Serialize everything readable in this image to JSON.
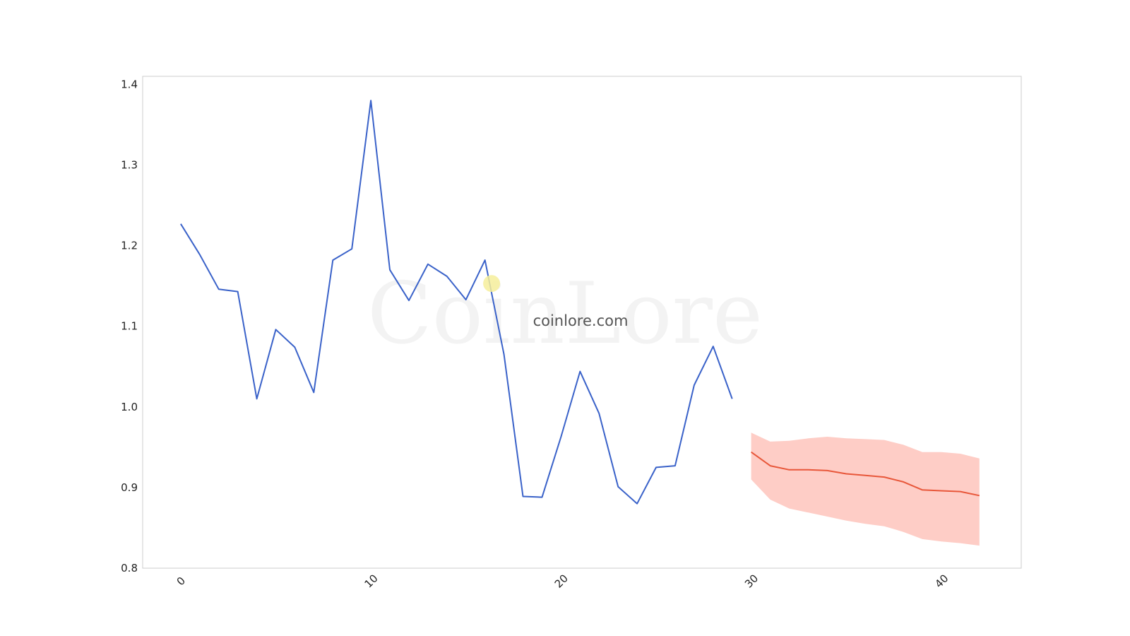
{
  "watermark": {
    "logo_text": "CoinLore",
    "site_text": "coinlore.com"
  },
  "colors": {
    "history_line": "#3a62c9",
    "forecast_line": "#e8573a",
    "forecast_band": "#fdbcb3",
    "frame": "#cccccc",
    "marker": "#f6ef9b"
  },
  "chart_data": {
    "type": "line",
    "title": "",
    "xlabel": "",
    "ylabel": "",
    "xlim": [
      -2,
      44.2
    ],
    "ylim": [
      0.8,
      1.41
    ],
    "x_ticks": [
      0,
      10,
      20,
      30,
      40
    ],
    "x_tick_labels": [
      "0",
      "10",
      "20",
      "30",
      "40"
    ],
    "y_ticks": [
      0.8,
      0.9,
      1.0,
      1.1,
      1.2,
      1.3,
      1.4
    ],
    "y_tick_labels": [
      "0.8",
      "0.9",
      "1.0",
      "1.1",
      "1.2",
      "1.3",
      "1.4"
    ],
    "grid": false,
    "series": [
      {
        "x": [
          0,
          1,
          2,
          3,
          4,
          5,
          6,
          7,
          8,
          9,
          10,
          11,
          12,
          13,
          14,
          15,
          16,
          17,
          18,
          19,
          20,
          21,
          22,
          23,
          24,
          25,
          26,
          27,
          28,
          29
        ],
        "values": [
          1.227,
          1.189,
          1.146,
          1.143,
          1.01,
          1.096,
          1.074,
          1.018,
          1.182,
          1.196,
          1.38,
          1.17,
          1.132,
          1.177,
          1.162,
          1.133,
          1.182,
          1.065,
          0.889,
          0.888,
          0.963,
          1.044,
          0.992,
          0.901,
          0.88,
          0.925,
          0.927,
          1.027,
          1.075,
          1.01
        ]
      },
      {
        "x": [
          30,
          31,
          32,
          33,
          34,
          35,
          36,
          37,
          38,
          39,
          40,
          41,
          42
        ],
        "values": [
          0.944,
          0.927,
          0.922,
          0.922,
          0.921,
          0.917,
          0.915,
          0.913,
          0.907,
          0.897,
          0.896,
          0.895,
          0.89
        ],
        "lower": [
          0.91,
          0.885,
          0.874,
          0.869,
          0.864,
          0.859,
          0.855,
          0.852,
          0.845,
          0.836,
          0.833,
          0.831,
          0.828
        ],
        "upper": [
          0.968,
          0.957,
          0.958,
          0.961,
          0.963,
          0.961,
          0.96,
          0.959,
          0.953,
          0.944,
          0.944,
          0.942,
          0.936
        ]
      }
    ],
    "marker_point": {
      "x": 16.35,
      "y": 1.153
    }
  }
}
